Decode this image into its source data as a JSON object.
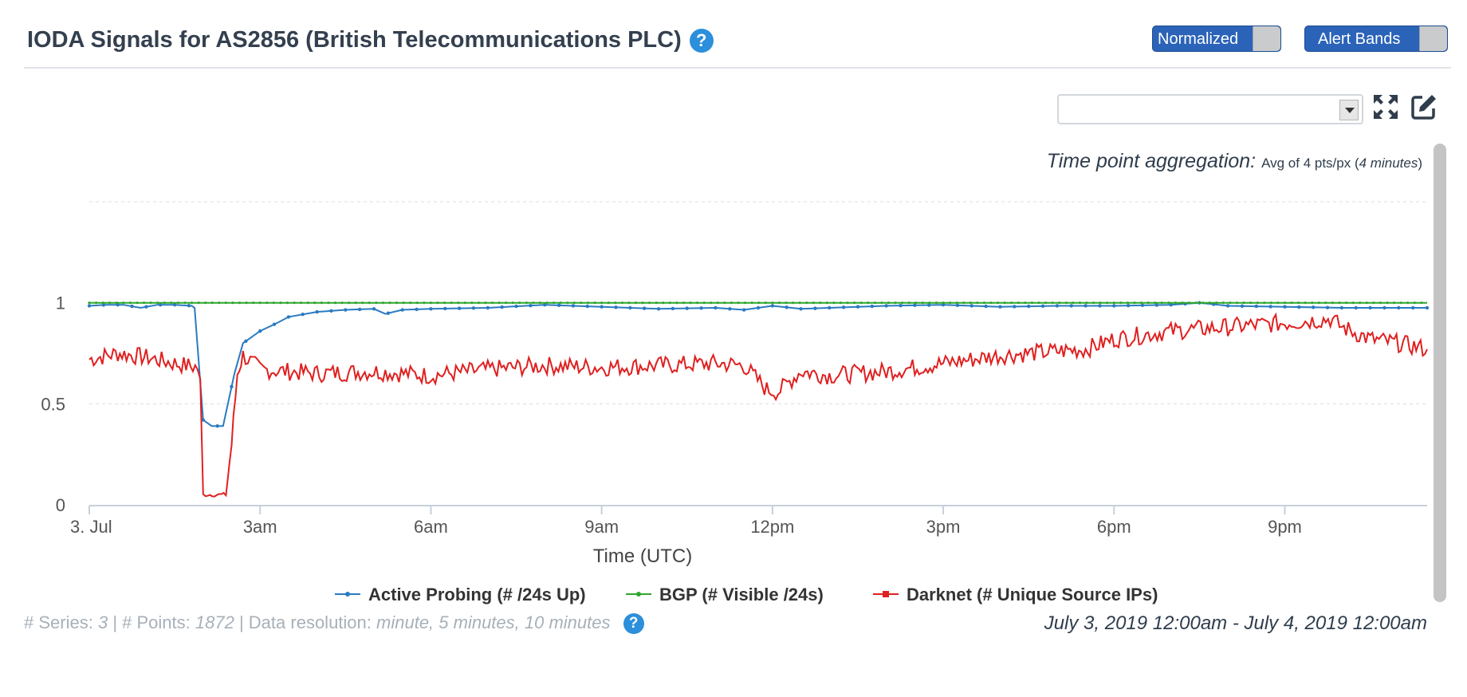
{
  "header": {
    "title": "IODA Signals for AS2856 (British Telecommunications PLC)",
    "help_glyph": "?",
    "toggles": [
      {
        "label": "Normalized"
      },
      {
        "label": "Alert Bands"
      }
    ]
  },
  "toolbar": {
    "select_value": "",
    "fullscreen_icon": "expand-icon",
    "edit_icon": "edit-icon"
  },
  "aggregation": {
    "label": "Time point aggregation:",
    "value_prefix": "Avg of 4 pts/px (",
    "value_italic": "4 minutes",
    "value_suffix": ")"
  },
  "chart_data": {
    "type": "line",
    "xlabel": "Time (UTC)",
    "ylabel": "",
    "x_ticks": [
      "3. Jul",
      "3am",
      "6am",
      "9am",
      "12pm",
      "3pm",
      "6pm",
      "9pm"
    ],
    "x_range_hours": [
      0,
      23.5
    ],
    "y_ticks": [
      "0",
      "0.5",
      "1"
    ],
    "ylim": [
      0,
      1.5
    ],
    "grid": true,
    "legend_position": "bottom",
    "colors": {
      "active": "#2a7bc1",
      "bgp": "#2ea62e",
      "darknet": "#e02020"
    },
    "series": [
      {
        "name": "Active Probing (# /24s Up)",
        "key": "active",
        "marker": true,
        "x": [
          0,
          0.3,
          0.6,
          0.9,
          1.2,
          1.5,
          1.8,
          1.85,
          2.0,
          2.15,
          2.35,
          2.55,
          2.7,
          2.8,
          3.0,
          3.3,
          3.5,
          4.0,
          4.5,
          5.0,
          5.2,
          5.5,
          6.0,
          7.0,
          8.0,
          9.0,
          10.0,
          11.0,
          11.5,
          12.0,
          12.5,
          13.0,
          14.0,
          15.0,
          16.0,
          17.0,
          18.0,
          19.0,
          19.5,
          20.0,
          21.0,
          22.0,
          23.0,
          23.5
        ],
        "y": [
          0.985,
          0.99,
          0.99,
          0.975,
          0.99,
          0.99,
          0.985,
          0.975,
          0.42,
          0.39,
          0.39,
          0.65,
          0.8,
          0.82,
          0.86,
          0.9,
          0.93,
          0.955,
          0.965,
          0.97,
          0.945,
          0.965,
          0.97,
          0.975,
          0.99,
          0.98,
          0.97,
          0.975,
          0.965,
          0.985,
          0.97,
          0.975,
          0.985,
          0.99,
          0.98,
          0.985,
          0.985,
          0.99,
          1.0,
          0.985,
          0.98,
          0.975,
          0.975,
          0.975
        ]
      },
      {
        "name": "BGP (# Visible /24s)",
        "key": "bgp",
        "marker": true,
        "x": [
          0,
          23.5
        ],
        "y": [
          1.0,
          1.0
        ]
      },
      {
        "name": "Darknet (# Unique Source IPs)",
        "key": "darknet",
        "marker": false,
        "x": [
          0,
          0.5,
          1.0,
          1.5,
          1.9,
          1.95,
          2.0,
          2.4,
          2.5,
          2.6,
          2.7,
          3.0,
          4.0,
          5.0,
          6.0,
          7.0,
          8.0,
          9.0,
          10.0,
          11.0,
          11.5,
          11.9,
          12.1,
          12.5,
          13.0,
          14.0,
          14.5,
          15.0,
          16.0,
          17.0,
          17.5,
          18.0,
          19.0,
          20.0,
          21.0,
          21.8,
          22.0,
          22.5,
          23.0,
          23.5
        ],
        "y": [
          0.72,
          0.75,
          0.73,
          0.7,
          0.68,
          0.6,
          0.05,
          0.05,
          0.3,
          0.65,
          0.74,
          0.67,
          0.65,
          0.66,
          0.64,
          0.67,
          0.69,
          0.68,
          0.69,
          0.7,
          0.69,
          0.57,
          0.56,
          0.66,
          0.64,
          0.66,
          0.68,
          0.7,
          0.74,
          0.76,
          0.77,
          0.82,
          0.86,
          0.88,
          0.9,
          0.92,
          0.88,
          0.82,
          0.8,
          0.77
        ]
      }
    ]
  },
  "footer": {
    "series_label": "# Series:",
    "series_count": "3",
    "points_label": "| # Points:",
    "points_count": "1872",
    "resolution_label": "| Data resolution:",
    "resolution_value": "minute, 5 minutes, 10 minutes",
    "help_glyph": "?",
    "date_range": "July 3, 2019 12:00am - July 4, 2019 12:00am"
  }
}
